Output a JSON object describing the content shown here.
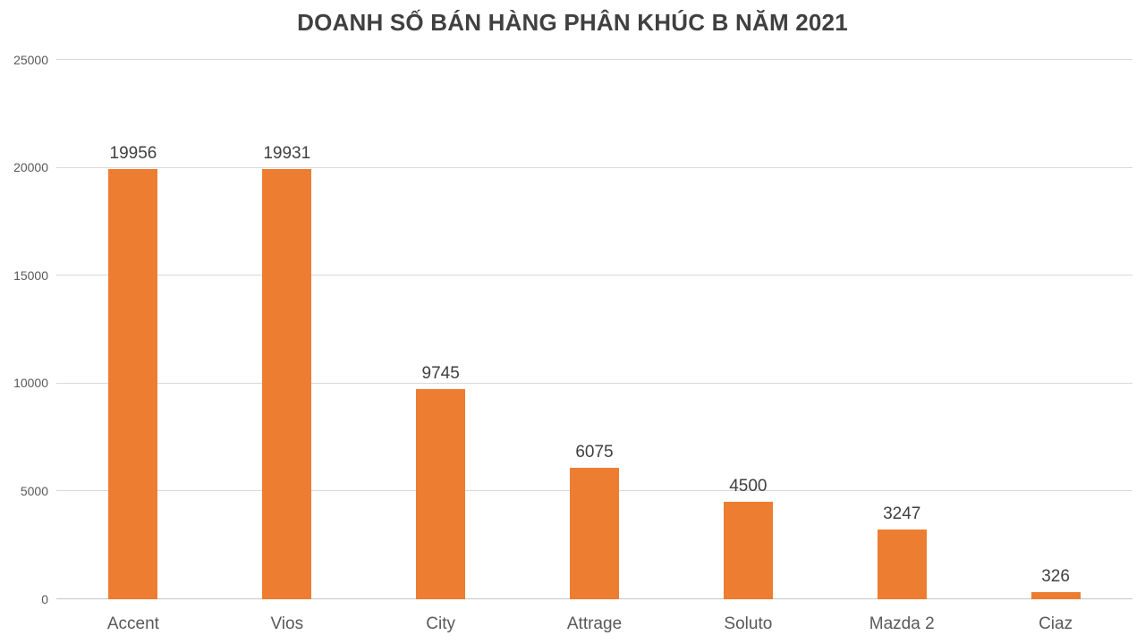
{
  "chart_data": {
    "type": "bar",
    "title": "DOANH SỐ BÁN HÀNG PHÂN KHÚC B NĂM 2021",
    "categories": [
      "Accent",
      "Vios",
      "City",
      "Attrage",
      "Soluto",
      "Mazda 2",
      "Ciaz"
    ],
    "values": [
      19956,
      19931,
      9745,
      6075,
      4500,
      3247,
      326
    ],
    "data_labels": [
      "19956",
      "19931",
      "9745",
      "6075",
      "4500",
      "3247",
      "326"
    ],
    "xlabel": "",
    "ylabel": "",
    "ylim": [
      0,
      25000
    ],
    "yticks": [
      0,
      5000,
      10000,
      15000,
      20000,
      25000
    ],
    "ytick_labels": [
      "0",
      "5000",
      "10000",
      "15000",
      "20000",
      "25000"
    ],
    "grid": true,
    "legend": false,
    "colors": {
      "bar": "#ED7D31",
      "title": "#404040",
      "value_label": "#404040",
      "axis_label": "#595959",
      "gridline": "#D9D9D9"
    }
  }
}
